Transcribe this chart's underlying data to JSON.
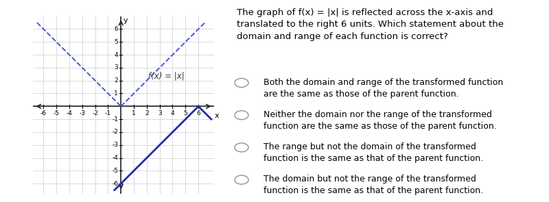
{
  "graph_xlim": [
    -6.8,
    7.2
  ],
  "graph_ylim": [
    -6.8,
    7.0
  ],
  "grid_color": "#cccccc",
  "axis_color": "#222222",
  "line_color_parent": "#4455cc",
  "line_color_transformed": "#1a2eaa",
  "background_color": "#ffffff",
  "parent_label": "f(x) = |x|",
  "question_line1": "The graph of ",
  "question_italic": "f",
  "question_line1b": "(x) = |x| is reflected across the ",
  "question_italic2": "x",
  "question_line1c": "-axis and",
  "question_line2": "translated to the right 6 units. Which statement about the",
  "question_line3": "domain and range of each function is correct?",
  "options": [
    [
      "Both the domain and range of the transformed function",
      "are the same as those of the parent function."
    ],
    [
      "Neither the domain nor the range of the transformed",
      "function are the same as those of the parent function."
    ],
    [
      "The range but not the domain of the transformed",
      "function is the same as that of the parent function."
    ],
    [
      "The domain but not the range of the transformed",
      "function is the same as that of the parent function."
    ]
  ],
  "font_size_question": 9.5,
  "font_size_options": 9.0,
  "font_size_label": 8.5,
  "font_size_tick": 6.5
}
